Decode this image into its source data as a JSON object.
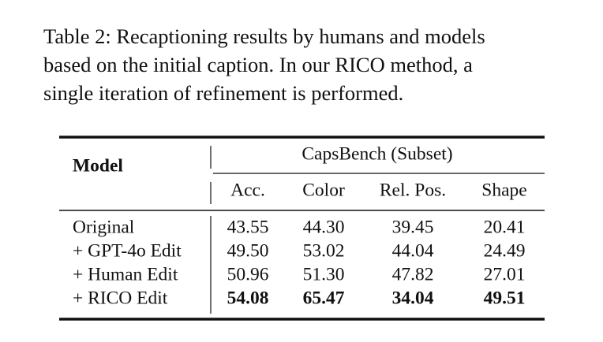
{
  "caption": {
    "lines": [
      "Table 2: Recaptioning results by humans and models",
      "based on the initial caption.  In our RICO method, a",
      "single iteration of refinement is performed."
    ]
  },
  "table": {
    "row_header": "Model",
    "group_header": "CapsBench (Subset)",
    "columns": [
      "Acc.",
      "Color",
      "Rel. Pos.",
      "Shape"
    ],
    "rows": [
      {
        "label": "Original",
        "cells": [
          "43.55",
          "44.30",
          "39.45",
          "20.41"
        ]
      },
      {
        "label": "+ GPT-4o Edit",
        "cells": [
          "49.50",
          "53.02",
          "44.04",
          "24.49"
        ]
      },
      {
        "label": "+ Human Edit",
        "cells": [
          "50.96",
          "51.30",
          "47.82",
          "27.01"
        ]
      },
      {
        "label": "+ RICO Edit",
        "cells": [
          "54.08",
          "65.47",
          "34.04",
          "49.51"
        ]
      }
    ],
    "bold_rows": [
      3
    ]
  }
}
